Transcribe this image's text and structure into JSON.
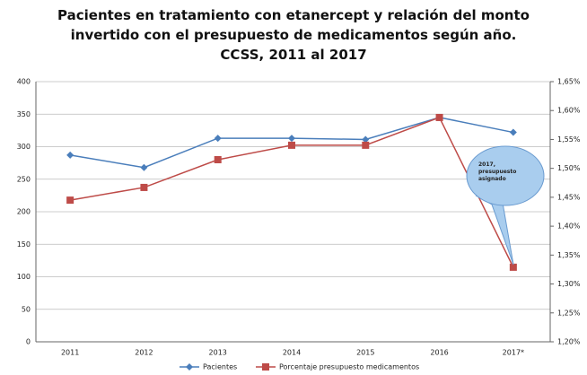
{
  "chart_data": {
    "type": "line",
    "title": "Pacientes en tratamiento con etanercept y relación del monto invertido con el presupuesto de medicamentos según año. CCSS, 2011 al 2017",
    "categories": [
      "2011",
      "2012",
      "2013",
      "2014",
      "2015",
      "2016",
      "2017*"
    ],
    "series": [
      {
        "name": "Pacientes",
        "color": "#4a7ebb",
        "marker": "diamond",
        "values": [
          287,
          268,
          313,
          313,
          311,
          345,
          322
        ]
      },
      {
        "name": "Porcentaje presupuesto medicamentos",
        "color": "#be4b48",
        "marker": "square",
        "axis": "y2",
        "values": [
          1.445,
          1.467,
          1.515,
          1.54,
          1.54,
          1.588,
          1.329
        ]
      }
    ],
    "ylim": [
      0,
      400
    ],
    "yticks": [
      0,
      50,
      100,
      150,
      200,
      250,
      300,
      350,
      400
    ],
    "y2lim": [
      1.2,
      1.65
    ],
    "y2ticks": [
      {
        "value": 1.2,
        "label": "1,20%"
      },
      {
        "value": 1.25,
        "label": "1,25%"
      },
      {
        "value": 1.3,
        "label": "1,30%"
      },
      {
        "value": 1.35,
        "label": "1,35%"
      },
      {
        "value": 1.4,
        "label": "1,40%"
      },
      {
        "value": 1.45,
        "label": "1,45%"
      },
      {
        "value": 1.5,
        "label": "1,50%"
      },
      {
        "value": 1.55,
        "label": "1,55%"
      },
      {
        "value": 1.6,
        "label": "1,60%"
      },
      {
        "value": 1.65,
        "label": "1,65%"
      }
    ],
    "grid": true,
    "legend": "bottom",
    "annotation": "2017, presupuesto asignado"
  }
}
